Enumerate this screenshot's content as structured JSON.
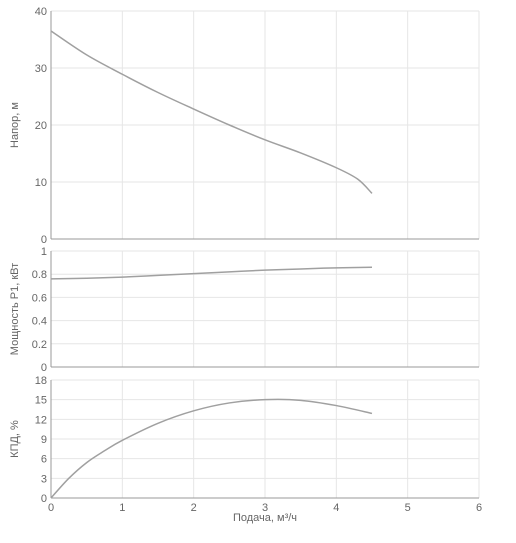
{
  "chart_data": [
    {
      "type": "line",
      "ylabel": "Напор, м",
      "xlim": [
        0,
        6
      ],
      "ylim": [
        0,
        40
      ],
      "yticks": [
        "0",
        "10",
        "20",
        "30",
        "40"
      ],
      "grid": true,
      "series": [
        {
          "x": [
            0,
            0.5,
            1,
            1.5,
            2,
            2.5,
            3,
            3.5,
            4,
            4.3,
            4.5
          ],
          "y": [
            36.5,
            32.3,
            28.9,
            25.7,
            22.8,
            20.0,
            17.4,
            15.1,
            12.5,
            10.5,
            8.0
          ]
        }
      ]
    },
    {
      "type": "line",
      "ylabel": "Мощность P1, кВт",
      "xlim": [
        0,
        6
      ],
      "ylim": [
        0,
        1
      ],
      "yticks": [
        "0",
        "0.2",
        "0.4",
        "0.6",
        "0.8",
        "1"
      ],
      "grid": true,
      "series": [
        {
          "x": [
            0,
            0.5,
            1,
            1.5,
            2,
            2.5,
            3,
            3.5,
            4,
            4.5
          ],
          "y": [
            0.76,
            0.765,
            0.775,
            0.79,
            0.805,
            0.82,
            0.835,
            0.845,
            0.855,
            0.86
          ]
        }
      ]
    },
    {
      "type": "line",
      "ylabel": "КПД, %",
      "xlabel": "Подача, м³/ч",
      "xlim": [
        0,
        6
      ],
      "ylim": [
        0,
        18
      ],
      "yticks": [
        "0",
        "3",
        "6",
        "9",
        "12",
        "15",
        "18"
      ],
      "xticks": [
        "0",
        "1",
        "2",
        "3",
        "4",
        "5",
        "6"
      ],
      "grid": true,
      "series": [
        {
          "x": [
            0,
            0.25,
            0.5,
            0.75,
            1,
            1.5,
            2,
            2.5,
            3,
            3.5,
            4,
            4.5
          ],
          "y": [
            0,
            3.0,
            5.4,
            7.2,
            8.8,
            11.4,
            13.3,
            14.5,
            15.0,
            14.9,
            14.1,
            12.9
          ]
        }
      ]
    }
  ]
}
